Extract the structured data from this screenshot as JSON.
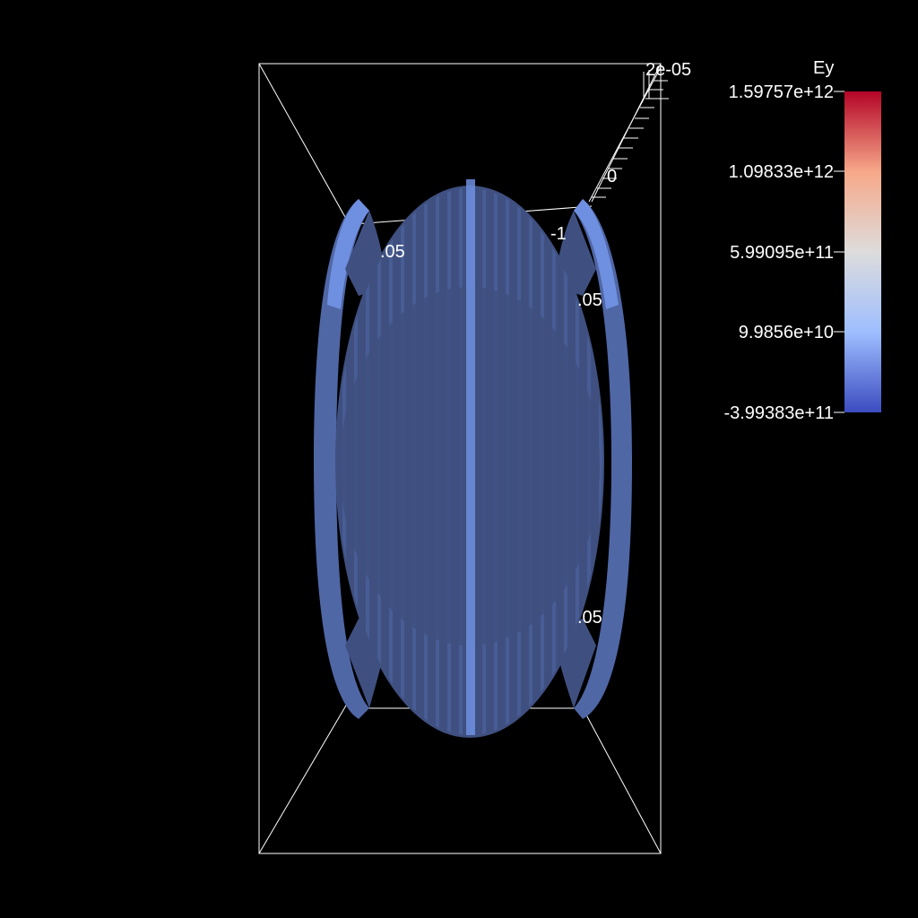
{
  "scalar_bar": {
    "title": "Ey",
    "labels": [
      "1.59757e+12",
      "1.09833e+12",
      "5.99095e+11",
      "9.9856e+10",
      "-3.99383e+11"
    ],
    "colormap": [
      "#b40426",
      "#f7a889",
      "#dddcdc",
      "#9ebeff",
      "#3b4cc0"
    ]
  },
  "axes": {
    "z_labels": [
      "2e-05",
      "0"
    ],
    "partial_labels": [
      ".05",
      "-1",
      ".05",
      ".05"
    ]
  },
  "surface_colors": {
    "body": "#3f5080",
    "highlight": "#6f8fe0",
    "edge": "#5a78c8"
  }
}
